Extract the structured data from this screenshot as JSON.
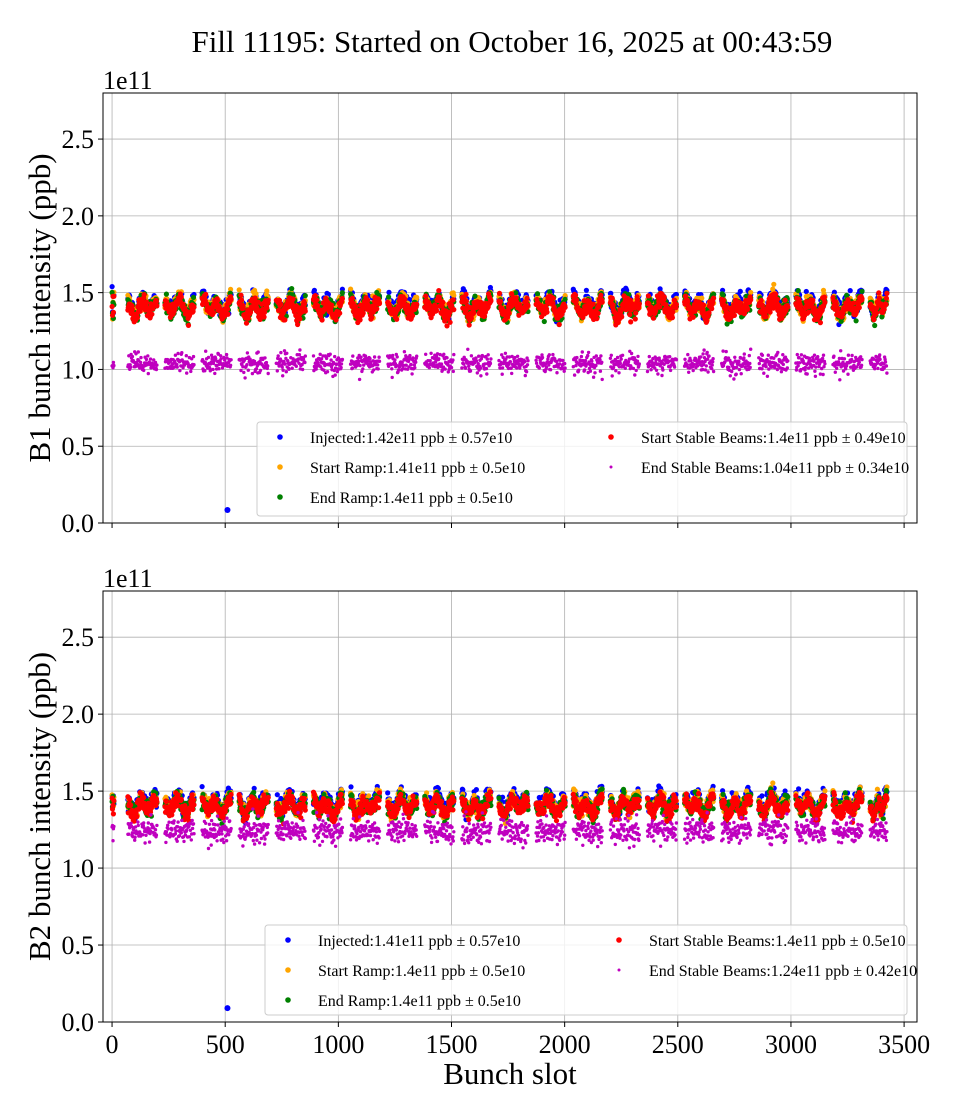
{
  "title": "Fill 11195: Started on October 16, 2025 at 00:43:59",
  "chart_data": [
    {
      "type": "scatter",
      "panel": "top",
      "ylabel": "B1 bunch intensity (ppb)",
      "xlabel": "",
      "offset_text": "1e11",
      "xlim": [
        -40,
        3557
      ],
      "ylim": [
        0,
        2.8
      ],
      "y_scale_factor": 100000000000.0,
      "xticks": [
        0,
        500,
        1000,
        1500,
        2000,
        2500,
        3000,
        3500
      ],
      "xtick_labels_visible": false,
      "yticks": [
        0.0,
        0.5,
        1.0,
        1.5,
        2.0,
        2.5
      ],
      "ytick_labels": [
        "0.0",
        "0.5",
        "1.0",
        "1.5",
        "2.0",
        "2.5"
      ],
      "grid": true,
      "legend_position": "lower-right",
      "x_range_filled": [
        0,
        3420
      ],
      "series": [
        {
          "name": "Injected",
          "label": "Injected:1.42e11 ppb ± 0.57e10",
          "color": "#0000ff",
          "mean": 1.42,
          "std": 0.057,
          "outliers": [
            [
              510,
              0.085
            ]
          ]
        },
        {
          "name": "Start Ramp",
          "label": "Start Ramp:1.41e11 ppb ± 0.5e10",
          "color": "#ffa500",
          "mean": 1.41,
          "std": 0.05
        },
        {
          "name": "End Ramp",
          "label": "End Ramp:1.4e11 ppb ± 0.5e10",
          "color": "#008000",
          "mean": 1.4,
          "std": 0.05
        },
        {
          "name": "Start Stable Beams",
          "label": "Start Stable Beams:1.4e11 ppb ± 0.49e10",
          "color": "#ff0000",
          "mean": 1.4,
          "std": 0.049
        },
        {
          "name": "End Stable Beams",
          "label": "End Stable Beams:1.04e11 ppb ± 0.34e10",
          "color": "#bf00bf",
          "mean": 1.04,
          "std": 0.034
        }
      ]
    },
    {
      "type": "scatter",
      "panel": "bottom",
      "ylabel": "B2 bunch intensity (ppb)",
      "xlabel": "Bunch slot",
      "offset_text": "1e11",
      "xlim": [
        -40,
        3557
      ],
      "ylim": [
        0,
        2.8
      ],
      "y_scale_factor": 100000000000.0,
      "xticks": [
        0,
        500,
        1000,
        1500,
        2000,
        2500,
        3000,
        3500
      ],
      "xtick_labels": [
        "0",
        "500",
        "1000",
        "1500",
        "2000",
        "2500",
        "3000",
        "3500"
      ],
      "yticks": [
        0.0,
        0.5,
        1.0,
        1.5,
        2.0,
        2.5
      ],
      "ytick_labels": [
        "0.0",
        "0.5",
        "1.0",
        "1.5",
        "2.0",
        "2.5"
      ],
      "grid": true,
      "legend_position": "lower-right",
      "x_range_filled": [
        0,
        3420
      ],
      "series": [
        {
          "name": "Injected",
          "label": "Injected:1.41e11 ppb ± 0.57e10",
          "color": "#0000ff",
          "mean": 1.41,
          "std": 0.057,
          "outliers": [
            [
              510,
              0.09
            ]
          ]
        },
        {
          "name": "Start Ramp",
          "label": "Start Ramp:1.4e11 ppb ± 0.5e10",
          "color": "#ffa500",
          "mean": 1.4,
          "std": 0.05
        },
        {
          "name": "End Ramp",
          "label": "End Ramp:1.4e11 ppb ± 0.5e10",
          "color": "#008000",
          "mean": 1.4,
          "std": 0.05
        },
        {
          "name": "Start Stable Beams",
          "label": "Start Stable Beams:1.4e11 ppb ± 0.5e10",
          "color": "#ff0000",
          "mean": 1.4,
          "std": 0.05
        },
        {
          "name": "End Stable Beams",
          "label": "End Stable Beams:1.24e11 ppb ± 0.42e10",
          "color": "#bf00bf",
          "mean": 1.24,
          "std": 0.042
        }
      ]
    }
  ]
}
